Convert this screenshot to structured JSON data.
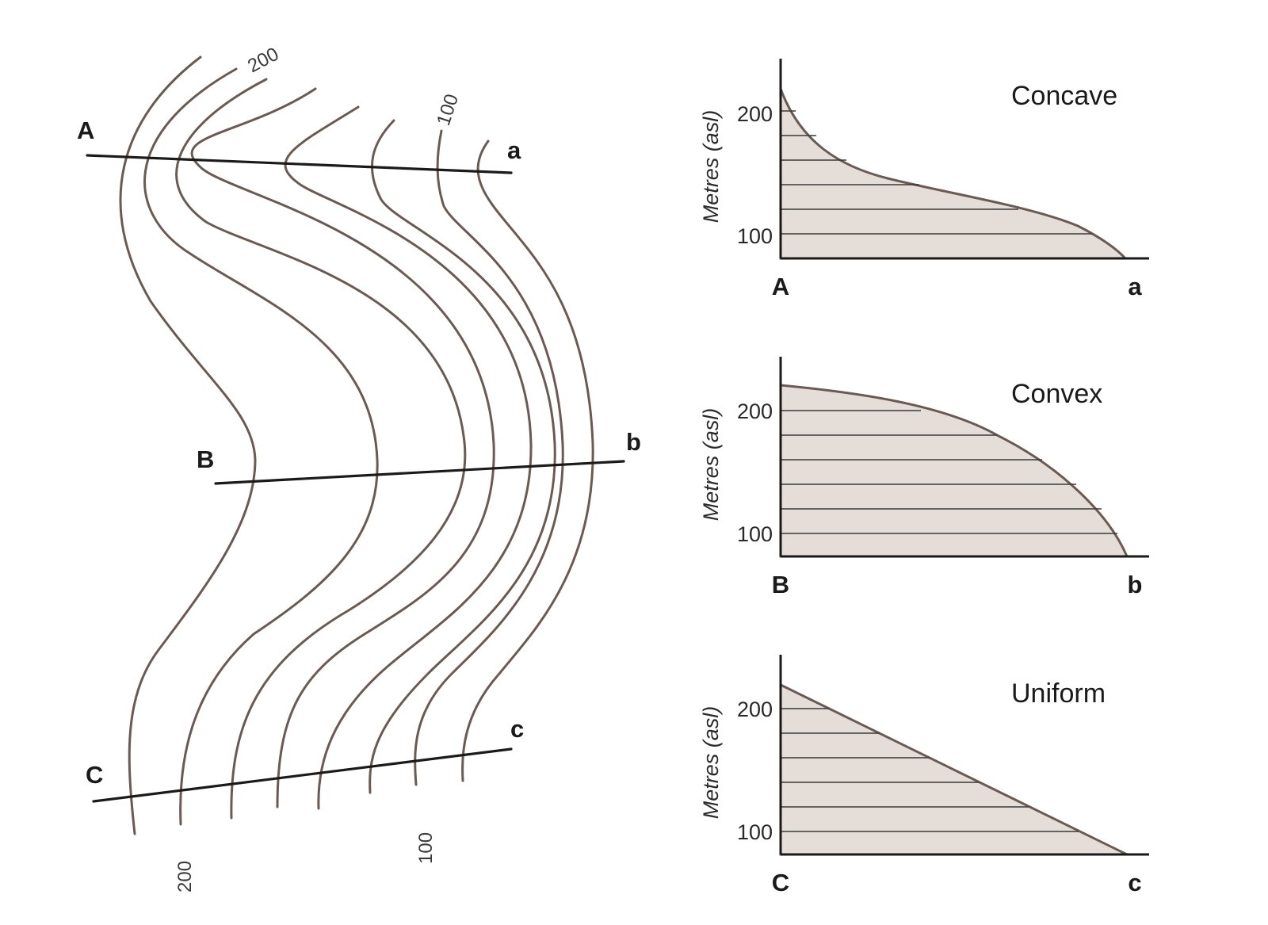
{
  "map": {
    "section_labels": {
      "A": "A",
      "a": "a",
      "B": "B",
      "b": "b",
      "C": "C",
      "c": "c"
    },
    "contour_labels": {
      "top_200": "200",
      "top_100": "100",
      "bottom_200": "200",
      "bottom_100": "100"
    }
  },
  "profiles": [
    {
      "shape": "Concave",
      "y_axis_label": "Metres (asl)",
      "y_ticks": [
        "200",
        "100"
      ],
      "x_start": "A",
      "x_end": "a"
    },
    {
      "shape": "Convex",
      "y_axis_label": "Metres (asl)",
      "y_ticks": [
        "200",
        "100"
      ],
      "x_start": "B",
      "x_end": "b"
    },
    {
      "shape": "Uniform",
      "y_axis_label": "Metres (asl)",
      "y_ticks": [
        "200",
        "100"
      ],
      "x_start": "C",
      "x_end": "c"
    }
  ],
  "colors": {
    "contour_line": "#6b5a52",
    "profile_fill": "#e5ddd8",
    "section_line": "#1a1a1a"
  }
}
